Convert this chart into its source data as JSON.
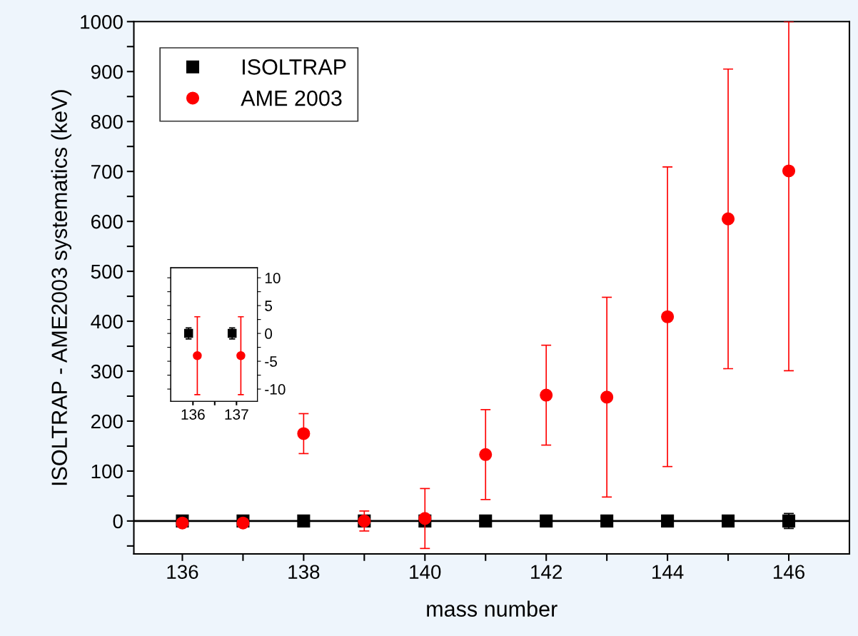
{
  "chart_data": [
    {
      "type": "scatter",
      "xlabel": "mass number",
      "ylabel": "ISOLTRAP - AME2003 systematics (keV)",
      "legend": "top left",
      "grid": false,
      "xlim": [
        135.2,
        147
      ],
      "xticks": [
        136,
        {
          "value": 137,
          "label": null
        },
        138,
        {
          "value": 139,
          "label": null
        },
        140,
        {
          "value": 141,
          "label": null
        },
        142,
        {
          "value": 143,
          "label": null
        },
        144,
        {
          "value": 145,
          "label": null
        },
        146
      ],
      "ylim": [
        -66,
        1000
      ],
      "yticks": [
        {
          "value": -50,
          "label": null
        },
        0,
        {
          "value": 50,
          "label": null
        },
        100,
        {
          "value": 150,
          "label": null
        },
        200,
        {
          "value": 250,
          "label": null
        },
        300,
        {
          "value": 350,
          "label": null
        },
        400,
        {
          "value": 450,
          "label": null
        },
        500,
        {
          "value": 550,
          "label": null
        },
        600,
        {
          "value": 650,
          "label": null
        },
        700,
        {
          "value": 750,
          "label": null
        },
        800,
        {
          "value": 850,
          "label": null
        },
        900,
        {
          "value": 950,
          "label": null
        },
        1000
      ],
      "ref_lines": [
        {
          "axis": "y",
          "value": 0,
          "color": "#000000",
          "line_style": "solid"
        }
      ],
      "series": [
        {
          "name": "ISOLTRAP",
          "color": "#000000",
          "marker": "square",
          "x": [
            136,
            137,
            138,
            139,
            140,
            141,
            142,
            143,
            144,
            145,
            146
          ],
          "values": [
            0,
            0,
            0,
            0,
            0,
            0,
            0,
            0,
            0,
            0,
            0
          ],
          "errors": [
            1,
            1,
            1,
            1,
            1,
            1,
            1,
            1,
            1,
            1,
            15
          ]
        },
        {
          "name": "AME 2003",
          "color": "#ff0000",
          "marker": "circle",
          "x": [
            136,
            137,
            138,
            139,
            140,
            141,
            142,
            143,
            144,
            145,
            146
          ],
          "values": [
            -4,
            -4,
            175,
            0,
            5,
            133,
            252,
            248,
            409,
            605,
            701
          ],
          "errors": [
            7,
            7,
            40,
            20,
            60,
            90,
            100,
            200,
            300,
            300,
            [
              301,
              1000
            ]
          ]
        }
      ]
    },
    {
      "type": "scatter",
      "grid": false,
      "xlim": [
        135.49,
        137.48
      ],
      "xticks": [
        136,
        {
          "value": 136.5,
          "label": null
        },
        137
      ],
      "y2lim": [
        -12.2,
        11.8
      ],
      "y2ticks": [
        -10,
        {
          "value": -7.5,
          "label": null
        },
        -5,
        {
          "value": -2.5,
          "label": null
        },
        0,
        {
          "value": 2.5,
          "label": null
        },
        5,
        {
          "value": 7.5,
          "label": null
        },
        10
      ],
      "series": [
        {
          "color": "#000000",
          "marker": "square",
          "axis": "y2",
          "x": [
            135.9,
            136.9
          ],
          "values": [
            0,
            0
          ],
          "errors": [
            1,
            1
          ]
        },
        {
          "color": "#ff0000",
          "marker": "circle",
          "axis": "y2",
          "x": [
            136.1,
            137.1
          ],
          "values": [
            -4,
            -4
          ],
          "errors": [
            7,
            7
          ]
        }
      ]
    }
  ]
}
